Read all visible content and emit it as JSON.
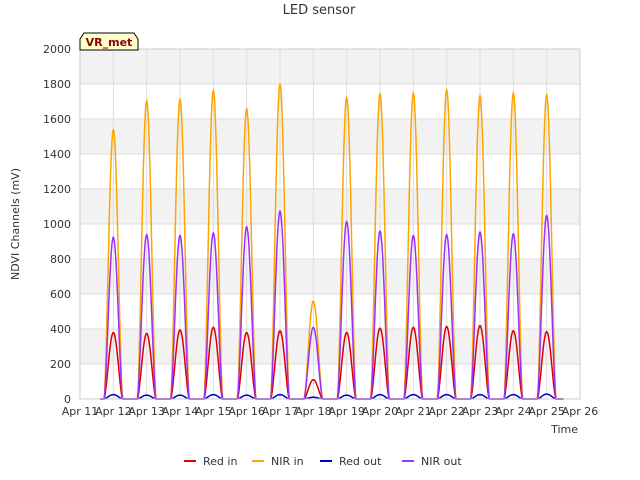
{
  "chart_data": {
    "type": "line",
    "title": "LED sensor",
    "xlabel": "Time",
    "ylabel": "NDVI Channels (mV)",
    "annotation": "VR_met",
    "ylim": [
      0,
      2000
    ],
    "yticks": [
      0,
      200,
      400,
      600,
      800,
      1000,
      1200,
      1400,
      1600,
      1800,
      2000
    ],
    "xlim": [
      11,
      26
    ],
    "xticks": [
      11,
      12,
      13,
      14,
      15,
      16,
      17,
      18,
      19,
      20,
      21,
      22,
      23,
      24,
      25,
      26
    ],
    "xtick_labels": [
      "Apr 11",
      "Apr 12",
      "Apr 13",
      "Apr 14",
      "Apr 15",
      "Apr 16",
      "Apr 17",
      "Apr 18",
      "Apr 19",
      "Apr 20",
      "Apr 21",
      "Apr 22",
      "Apr 23",
      "Apr 24",
      "Apr 25",
      "Apr 26"
    ],
    "day_peaks": [
      "Apr 12",
      "Apr 13",
      "Apr 14",
      "Apr 15",
      "Apr 16",
      "Apr 17",
      "Apr 18",
      "Apr 19",
      "Apr 20",
      "Apr 21",
      "Apr 22",
      "Apr 23",
      "Apr 24",
      "Apr 25"
    ],
    "legend_position": "bottom",
    "background_bands": true,
    "series": [
      {
        "name": "Red in",
        "color": "#dd0000",
        "daily_peak": [
          380,
          375,
          395,
          410,
          380,
          390,
          110,
          380,
          405,
          410,
          415,
          420,
          390,
          385
        ]
      },
      {
        "name": "NIR in",
        "color": "#ffa500",
        "daily_peak": [
          1540,
          1705,
          1715,
          1765,
          1660,
          1800,
          560,
          1725,
          1745,
          1750,
          1770,
          1735,
          1750,
          1740
        ]
      },
      {
        "name": "Red out",
        "color": "#0000cc",
        "daily_peak": [
          25,
          22,
          22,
          25,
          22,
          25,
          10,
          22,
          25,
          25,
          25,
          25,
          25,
          28
        ]
      },
      {
        "name": "NIR out",
        "color": "#9b30ff",
        "daily_peak": [
          925,
          940,
          935,
          950,
          985,
          1075,
          410,
          1015,
          960,
          935,
          940,
          955,
          945,
          1050
        ]
      }
    ]
  }
}
